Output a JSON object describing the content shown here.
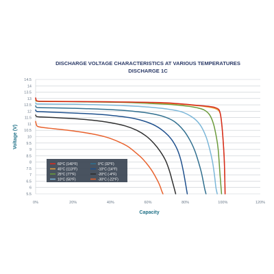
{
  "chart_data": {
    "type": "line",
    "title": "DISCHARGE VOLTAGE CHARACTERISTICS AT VARIOUS TEMPERATURES",
    "subtitle": "DISCHARGE 1C",
    "xlabel": "Capacity",
    "ylabel": "Voltage (V)",
    "xlim": [
      0,
      120
    ],
    "ylim": [
      5.5,
      14.5
    ],
    "x_tick_labels": [
      "0%",
      "20%",
      "40%",
      "60%",
      "80%",
      "100%",
      "120%"
    ],
    "y_tick_labels": [
      "14.5",
      "14",
      "13.5",
      "13",
      "12.5",
      "12",
      "11.5",
      "11",
      "10.5",
      "10",
      "9.5",
      "9",
      "8.5",
      "8",
      "7.5",
      "7",
      "6.5",
      "6",
      "5.5"
    ],
    "grid": true,
    "legend_position": "bottom-left",
    "series": [
      {
        "name": "60°C (140°F)",
        "color": "#d62a1e",
        "x": [
          0,
          0.6,
          3,
          10,
          20,
          30,
          40,
          50,
          60,
          70,
          80,
          85,
          90,
          94,
          96,
          98,
          99,
          100,
          100.8,
          101.2
        ],
        "y": [
          13.05,
          12.83,
          12.78,
          12.77,
          12.76,
          12.75,
          12.74,
          12.72,
          12.7,
          12.66,
          12.55,
          12.48,
          12.42,
          12.35,
          12.28,
          12.1,
          11.5,
          10.0,
          8.0,
          5.5
        ]
      },
      {
        "name": "45°C (113°F)",
        "color": "#e8a23c",
        "x": [
          0,
          0.6,
          3,
          10,
          20,
          30,
          40,
          50,
          60,
          70,
          80,
          85,
          90,
          94,
          96,
          98,
          99,
          100,
          100.8,
          101.2
        ],
        "y": [
          12.98,
          12.8,
          12.79,
          12.78,
          12.77,
          12.76,
          12.74,
          12.72,
          12.68,
          12.62,
          12.52,
          12.45,
          12.38,
          12.28,
          12.2,
          12.0,
          11.5,
          10.0,
          8.0,
          5.5
        ]
      },
      {
        "name": "25°C (77°F)",
        "color": "#6a9a3a",
        "x": [
          0,
          0.6,
          3,
          10,
          20,
          30,
          40,
          50,
          60,
          70,
          80,
          86,
          90,
          93,
          95,
          96.5,
          97.5,
          98.5,
          99.3
        ],
        "y": [
          12.85,
          12.78,
          12.77,
          12.76,
          12.75,
          12.73,
          12.71,
          12.68,
          12.62,
          12.55,
          12.42,
          12.28,
          12.1,
          11.7,
          11.0,
          10.0,
          9.0,
          7.0,
          5.5
        ]
      },
      {
        "name": "10°C (50°F)",
        "color": "#7ab6d8",
        "x": [
          0,
          0.6,
          3,
          10,
          20,
          30,
          40,
          50,
          60,
          70,
          78,
          84,
          88,
          91,
          93,
          94.5,
          95.5,
          96.3,
          97
        ],
        "y": [
          12.65,
          12.58,
          12.57,
          12.56,
          12.55,
          12.52,
          12.48,
          12.42,
          12.33,
          12.18,
          11.95,
          11.5,
          10.9,
          10.0,
          9.0,
          8.0,
          7.0,
          6.0,
          5.5
        ]
      },
      {
        "name": "0°C (32°F)",
        "color": "#2f6e8e",
        "x": [
          0,
          0.6,
          3,
          10,
          20,
          30,
          40,
          50,
          60,
          68,
          74,
          79,
          82.5,
          85,
          87,
          88.5,
          89.5,
          90.3,
          91
        ],
        "y": [
          12.42,
          12.3,
          12.28,
          12.26,
          12.23,
          12.19,
          12.13,
          12.03,
          11.86,
          11.6,
          11.2,
          10.5,
          9.7,
          8.9,
          8.0,
          7.2,
          6.5,
          5.9,
          5.5
        ]
      },
      {
        "name": "-10°C (14°F)",
        "color": "#1d4f8c",
        "x": [
          0,
          0.6,
          3,
          10,
          20,
          30,
          40,
          50,
          58,
          64,
          69,
          72.5,
          75.5,
          77.5,
          79,
          80.2,
          81
        ],
        "y": [
          12.1,
          11.98,
          11.96,
          11.92,
          11.86,
          11.79,
          11.68,
          11.5,
          11.22,
          10.86,
          10.35,
          9.8,
          9.05,
          8.2,
          7.2,
          6.2,
          5.5
        ]
      },
      {
        "name": "-20°C (-4°F)",
        "color": "#2e2e2e",
        "x": [
          0,
          0.6,
          3,
          10,
          20,
          30,
          40,
          48,
          54,
          59,
          63,
          66.5,
          69.5,
          71.5,
          73,
          74.1,
          74.8
        ],
        "y": [
          11.7,
          11.58,
          11.55,
          11.5,
          11.42,
          11.3,
          11.1,
          10.84,
          10.5,
          10.05,
          9.5,
          8.85,
          8.1,
          7.3,
          6.5,
          5.9,
          5.5
        ]
      },
      {
        "name": "-30°C (-22°F)",
        "color": "#e8612c",
        "x": [
          0,
          0.5,
          1.5,
          5,
          10,
          20,
          30,
          38,
          44,
          49,
          53,
          56.5,
          59.5,
          62,
          64,
          65.6,
          66.6,
          67.3,
          68
        ],
        "y": [
          11.2,
          10.9,
          10.78,
          10.7,
          10.62,
          10.45,
          10.22,
          9.95,
          9.62,
          9.25,
          8.8,
          8.35,
          7.85,
          7.35,
          6.85,
          6.4,
          6.05,
          5.75,
          5.5
        ]
      }
    ],
    "legend_order": [
      0,
      1,
      2,
      3,
      4,
      5,
      6,
      7
    ]
  }
}
